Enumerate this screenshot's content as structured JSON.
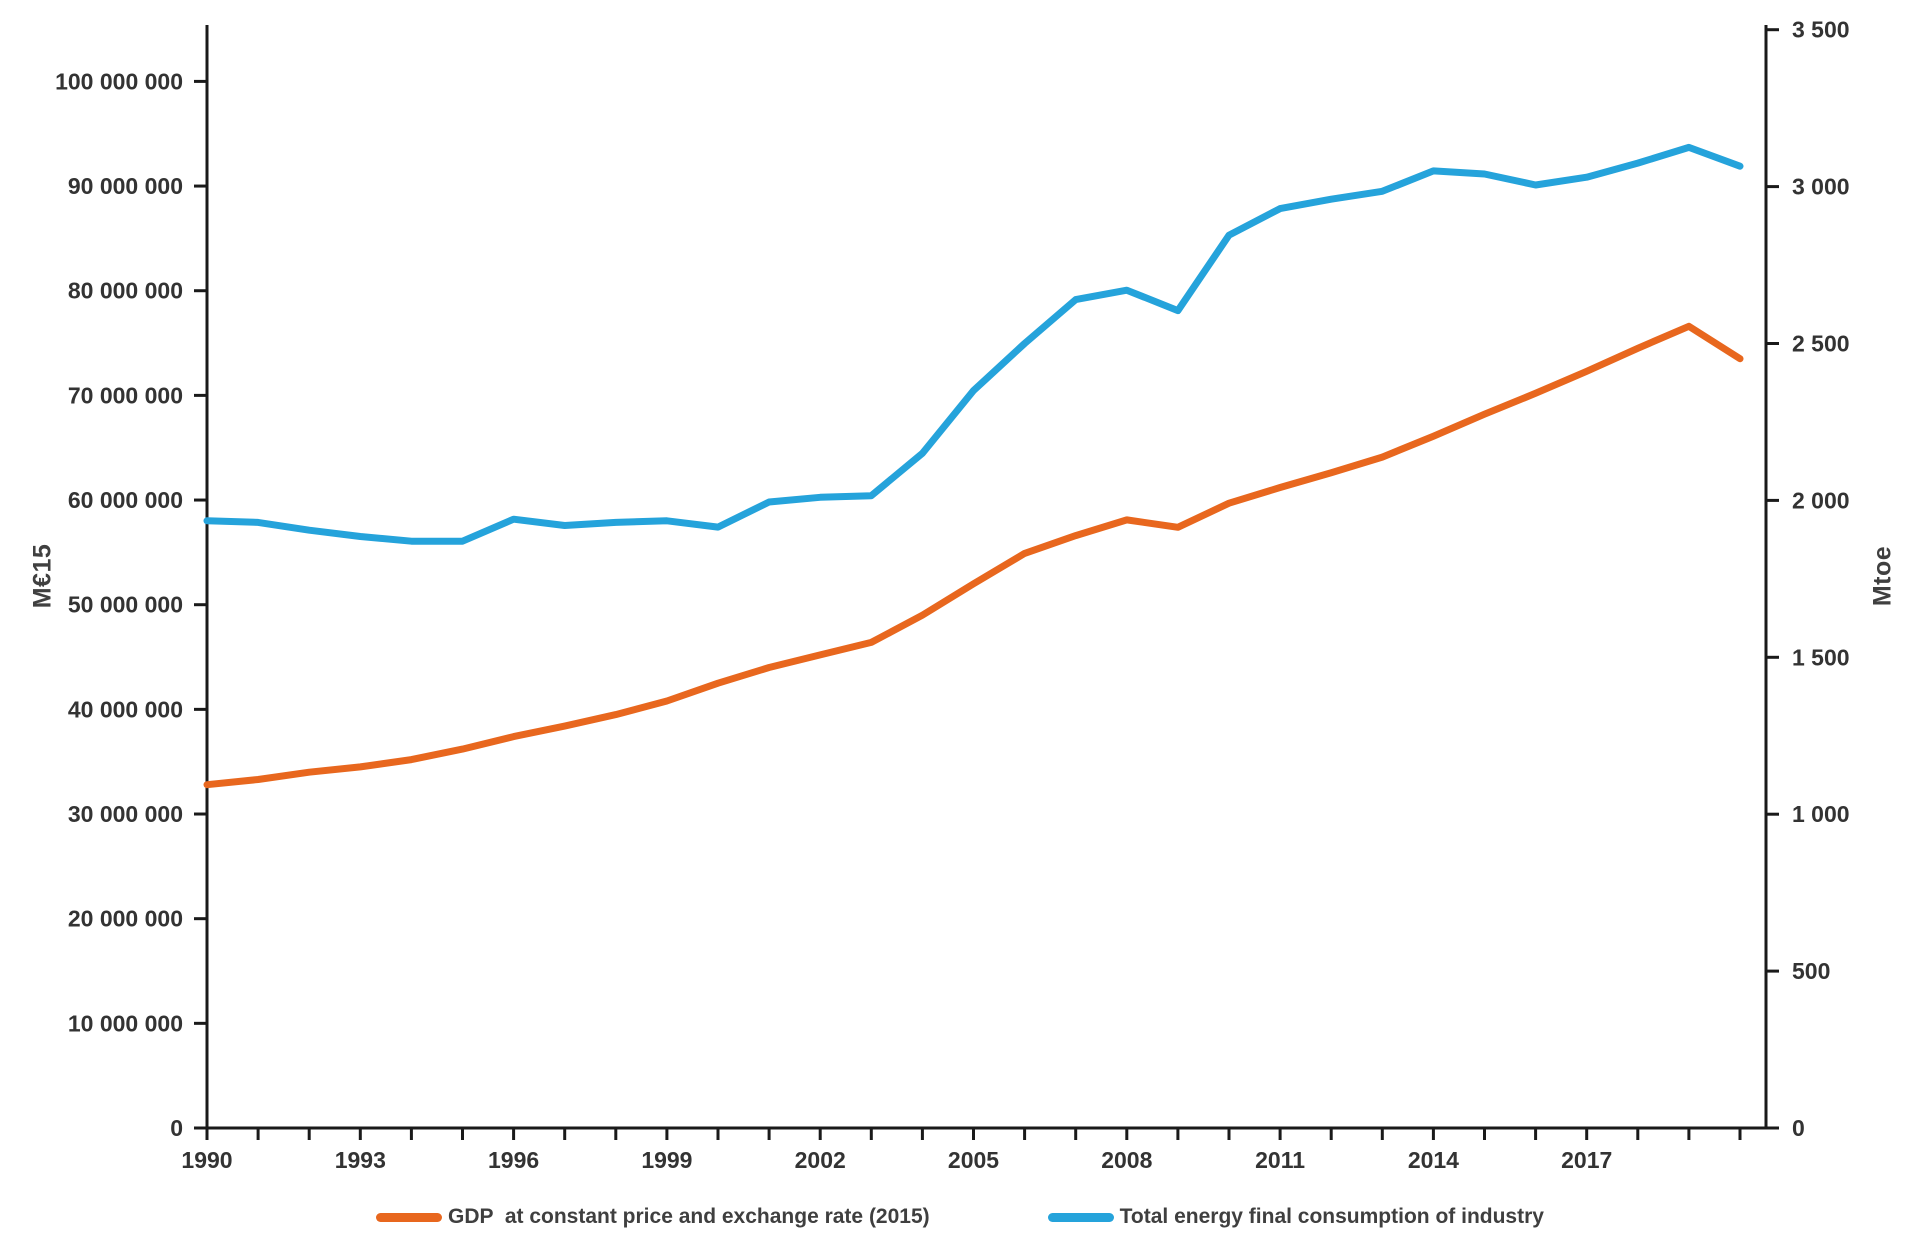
{
  "chart_data": {
    "type": "line",
    "title": "",
    "x": [
      1990,
      1991,
      1992,
      1993,
      1994,
      1995,
      1996,
      1997,
      1998,
      1999,
      2000,
      2001,
      2002,
      2003,
      2004,
      2005,
      2006,
      2007,
      2008,
      2009,
      2010,
      2011,
      2012,
      2013,
      2014,
      2015,
      2016,
      2017,
      2018,
      2019,
      2020
    ],
    "series": [
      {
        "name": "GDP  at constant price and exchange rate (2015)",
        "axis": "left",
        "color": "#E8671E",
        "values": [
          32800000,
          33300000,
          34000000,
          34500000,
          35200000,
          36200000,
          37400000,
          38400000,
          39500000,
          40800000,
          42500000,
          44000000,
          45200000,
          46400000,
          49000000,
          52000000,
          54900000,
          56600000,
          58100000,
          57400000,
          59700000,
          61200000,
          62600000,
          64100000,
          66100000,
          68200000,
          70200000,
          72300000,
          74500000,
          76600000,
          73500000
        ]
      },
      {
        "name": "Total energy final consumption of industry",
        "axis": "right",
        "color": "#25A3DB",
        "values": [
          1935,
          1930,
          1905,
          1885,
          1870,
          1870,
          1940,
          1920,
          1930,
          1935,
          1915,
          1995,
          2010,
          2015,
          2150,
          2350,
          2500,
          2640,
          2670,
          2605,
          2845,
          2930,
          2960,
          2985,
          3050,
          3040,
          3005,
          3030,
          3075,
          3125,
          3065
        ]
      }
    ],
    "left_axis": {
      "label": "M€15",
      "min": 0,
      "max": 100000000,
      "tick_step": 10000000,
      "tick_values": [
        0,
        10000000,
        20000000,
        30000000,
        40000000,
        50000000,
        60000000,
        70000000,
        80000000,
        90000000,
        100000000
      ],
      "tick_labels": [
        "0",
        "10 000 000",
        "20 000 000",
        "30 000 000",
        "40 000 000",
        "50 000 000",
        "60 000 000",
        "70 000 000",
        "80 000 000",
        "90 000 000",
        "100 000 000"
      ]
    },
    "right_axis": {
      "label": "Mtoe",
      "min": 0,
      "max": 3500,
      "tick_step": 500,
      "tick_values": [
        0,
        500,
        1000,
        1500,
        2000,
        2500,
        3000,
        3500
      ],
      "tick_labels": [
        "0",
        "500",
        "1 000",
        "1 500",
        "2 000",
        "2 500",
        "3 000",
        "3 500"
      ]
    },
    "x_axis": {
      "first_year": 1990,
      "last_year": 2020,
      "labeled_ticks": [
        1990,
        1993,
        1996,
        1999,
        2002,
        2005,
        2008,
        2011,
        2014,
        2017
      ],
      "tick_every_year": true
    },
    "grid": "off",
    "legend_position": "bottom"
  },
  "legend": {
    "items": [
      {
        "label": "GDP  at constant price and exchange rate (2015)",
        "color": "#E8671E"
      },
      {
        "label": "Total energy final consumption of industry",
        "color": "#25A3DB"
      }
    ]
  }
}
